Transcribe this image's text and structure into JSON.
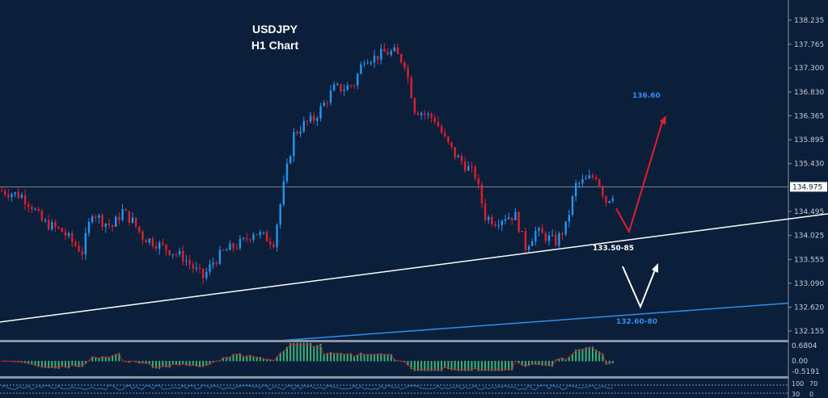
{
  "chart_data": {
    "type": "candlestick",
    "title": "USDJPY",
    "subtitle": "H1 Chart",
    "symbol": "USDJPY",
    "timeframe": "H1",
    "y_ticks": [
      "138.235",
      "137.765",
      "137.300",
      "136.830",
      "136.365",
      "135.895",
      "135.430",
      "134.495",
      "134.025",
      "133.555",
      "133.090",
      "132.620",
      "132.155"
    ],
    "ylim": [
      132.155,
      138.235
    ],
    "current_price": "134.975",
    "approx_close_path": [
      134.9,
      134.85,
      134.8,
      134.6,
      134.3,
      134.2,
      134.1,
      133.9,
      133.7,
      134.5,
      134.3,
      134.2,
      134.5,
      134.3,
      134.0,
      133.9,
      133.8,
      133.7,
      133.6,
      133.4,
      133.2,
      133.5,
      133.7,
      133.8,
      133.9,
      134.1,
      134.0,
      133.9,
      135.0,
      136.0,
      136.2,
      136.3,
      136.6,
      136.9,
      136.9,
      137.0,
      137.5,
      137.5,
      137.6,
      137.6,
      137.4,
      136.5,
      136.4,
      136.3,
      135.9,
      135.6,
      135.4,
      135.2,
      134.4,
      134.3,
      134.4,
      134.4,
      133.8,
      134.1,
      134.0,
      133.9,
      134.2,
      135.0,
      135.1,
      135.2,
      134.7,
      134.9
    ],
    "annotations": [
      {
        "text": "136.60",
        "color": "#2f8ff0",
        "price": 136.6
      },
      {
        "text": "133.50-85",
        "color": "#ffffff",
        "price": 133.85
      },
      {
        "text": "132.60-80",
        "color": "#2f8ff0",
        "price": 132.6
      }
    ],
    "trendlines": [
      {
        "name": "support",
        "color": "#ffffff",
        "from_price": 132.33,
        "to_price": 134.4
      },
      {
        "name": "lower-support",
        "color": "#2f8ff0",
        "from_price": 131.96,
        "to_price": 132.7
      }
    ],
    "colors": {
      "bull": "#2196f3",
      "bear": "#e0202a",
      "background": "#0b1e3a"
    },
    "macd": {
      "ticks": [
        "0.6804",
        "0.00",
        "-0.5191"
      ],
      "hist_color": "#3cb371",
      "signal_color": "#c0262c"
    },
    "oscillator": {
      "ticks": [
        "100",
        "70",
        "30",
        "0"
      ],
      "line_color": "#1f6fc0"
    }
  }
}
